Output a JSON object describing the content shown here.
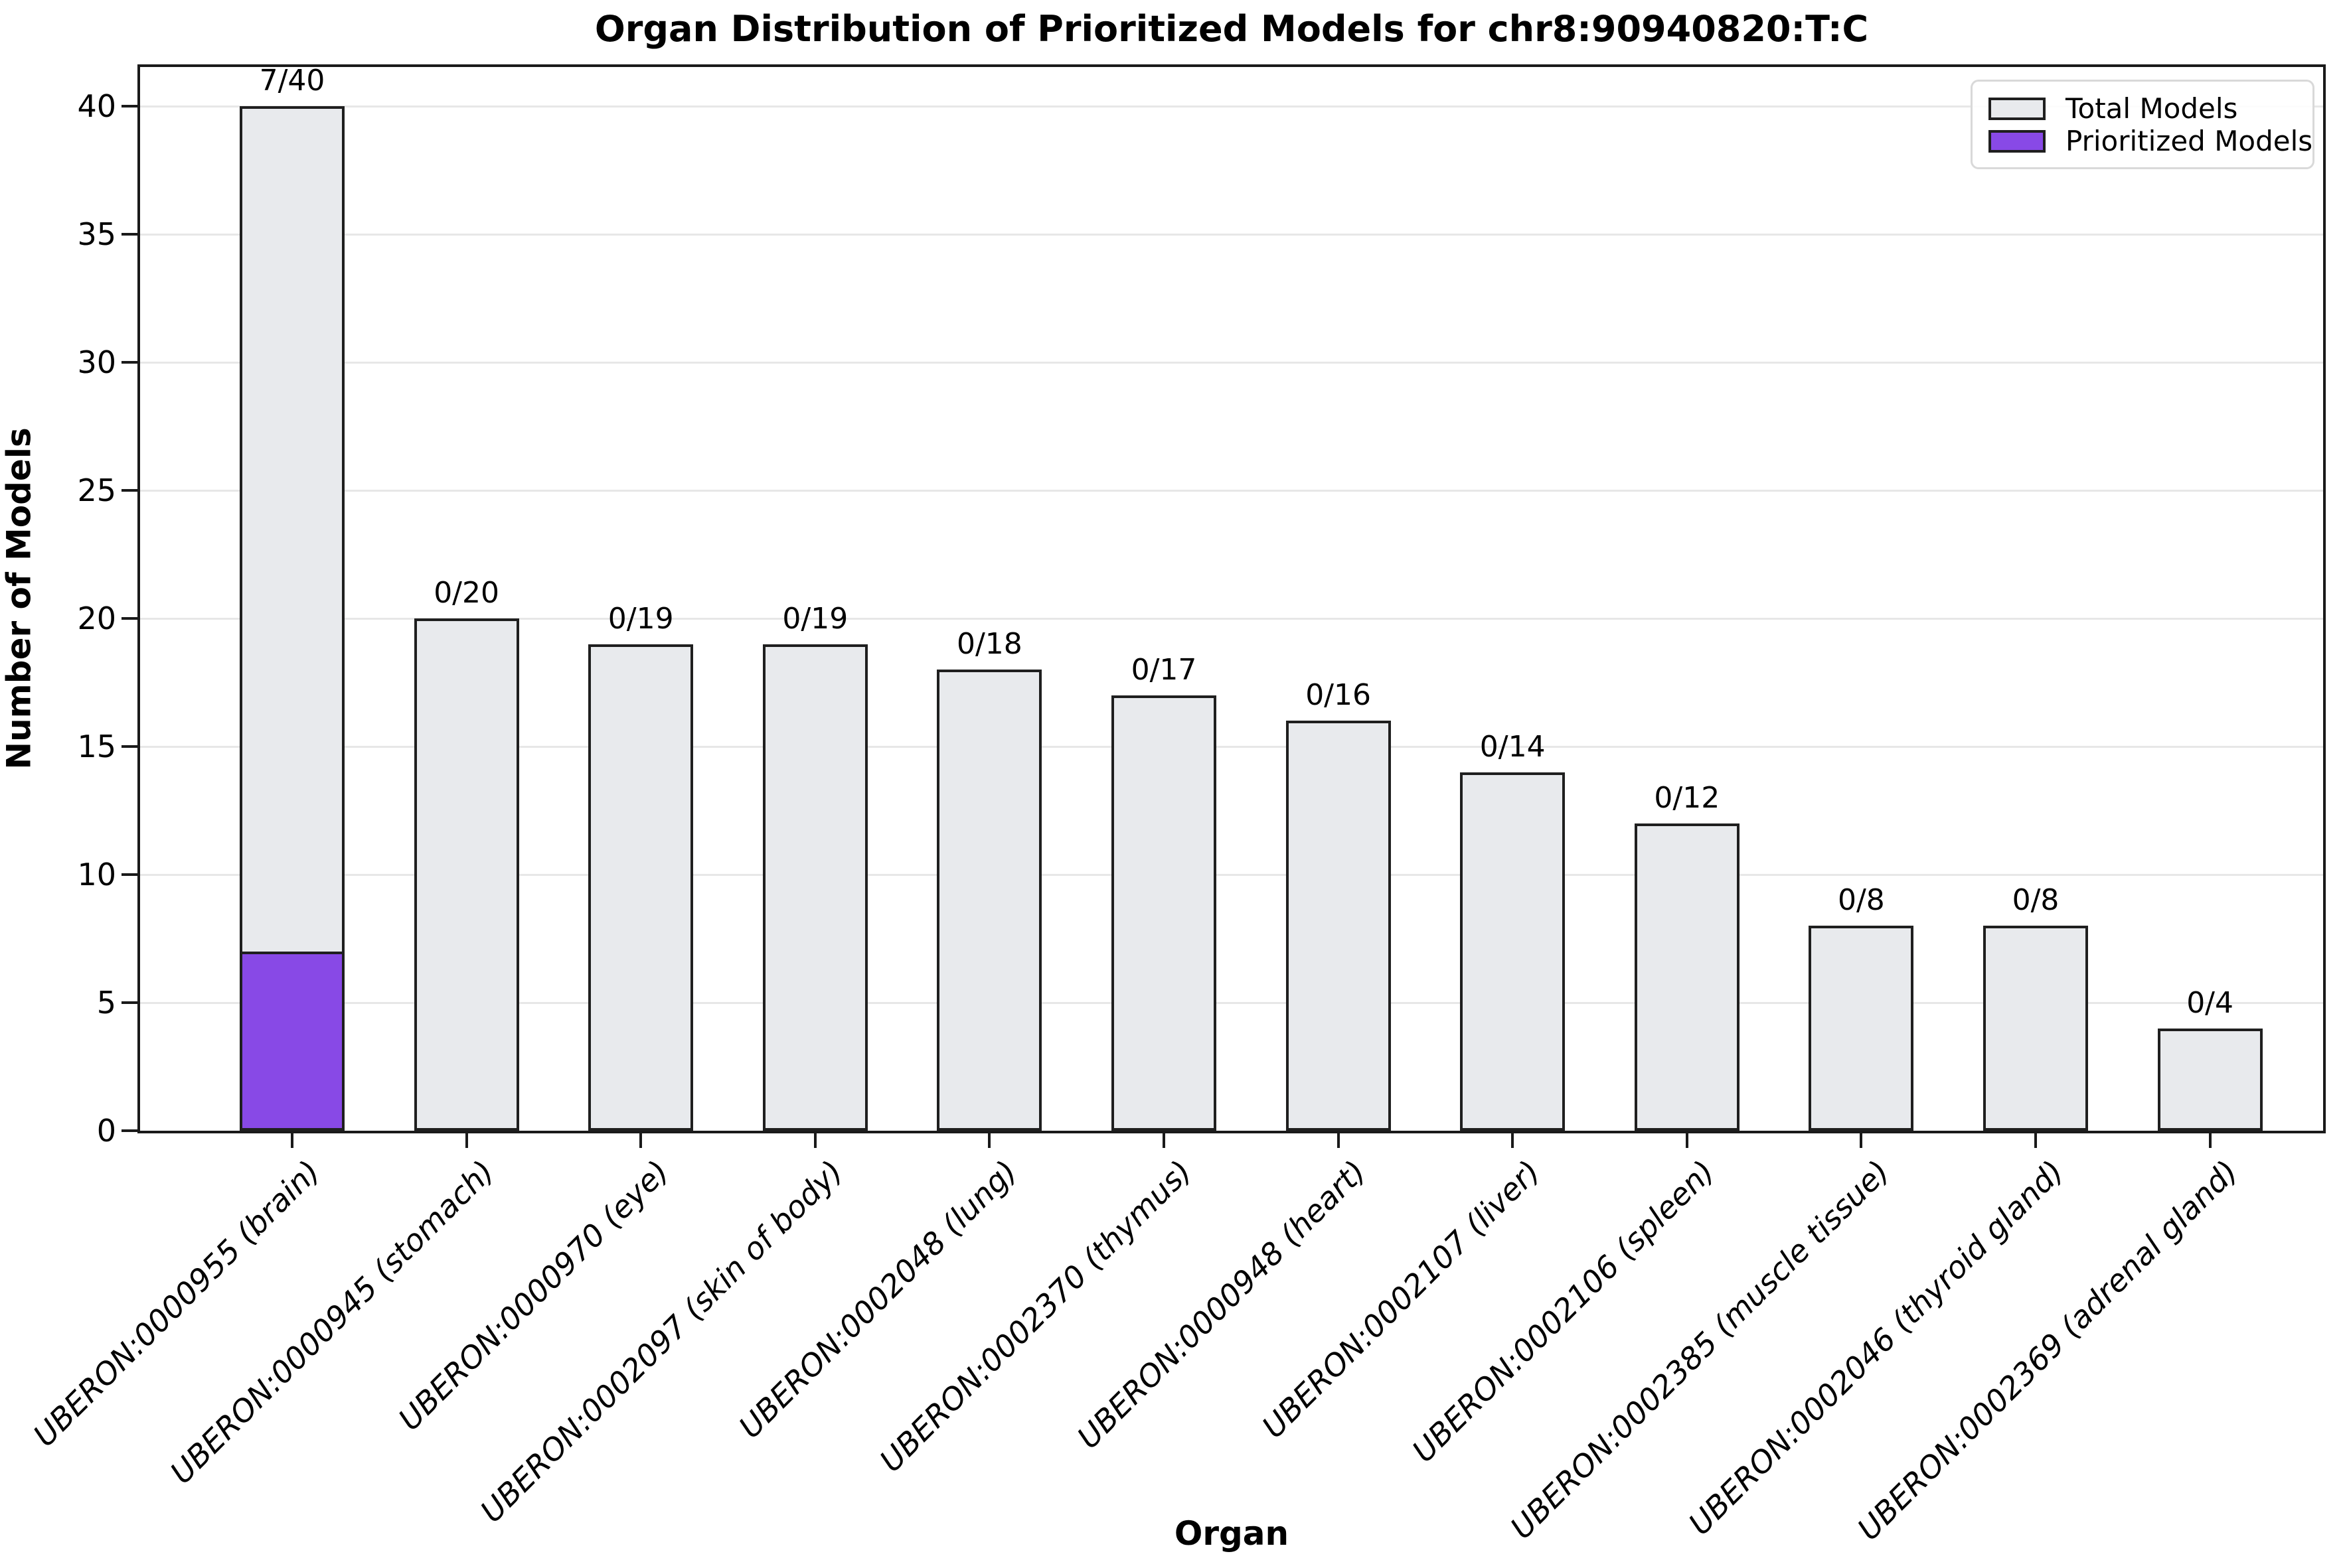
{
  "figure": {
    "title": "Organ Distribution of Prioritized Models for chr8:90940820:T:C",
    "xlabel": "Organ",
    "ylabel": "Number of Models"
  },
  "legend": {
    "position": "upper right",
    "items": [
      {
        "label": "Total Models",
        "color": "#e8eaed",
        "edge_color": "#1f1f1f"
      },
      {
        "label": "Prioritized Models",
        "color": "#8849e6",
        "edge_color": "#1f1f1f"
      }
    ]
  },
  "chart_data": {
    "type": "bar",
    "title": "Organ Distribution of Prioritized Models for chr8:90940820:T:C",
    "xlabel": "Organ",
    "ylabel": "Number of Models",
    "categories": [
      "UBERON:0000955 (brain)",
      "UBERON:0000945 (stomach)",
      "UBERON:0000970 (eye)",
      "UBERON:0002097 (skin of body)",
      "UBERON:0002048 (lung)",
      "UBERON:0002370 (thymus)",
      "UBERON:0000948 (heart)",
      "UBERON:0002107 (liver)",
      "UBERON:0002106 (spleen)",
      "UBERON:0002385 (muscle tissue)",
      "UBERON:0002046 (thyroid gland)",
      "UBERON:0002369 (adrenal gland)"
    ],
    "series": [
      {
        "name": "Total Models",
        "color": "#e8eaed",
        "values": [
          40,
          20,
          19,
          19,
          18,
          17,
          16,
          14,
          12,
          8,
          8,
          4
        ]
      },
      {
        "name": "Prioritized Models",
        "color": "#8849e6",
        "values": [
          7,
          0,
          0,
          0,
          0,
          0,
          0,
          0,
          0,
          0,
          0,
          0
        ]
      }
    ],
    "bar_labels": [
      "7/40",
      "0/20",
      "0/19",
      "0/19",
      "0/18",
      "0/17",
      "0/16",
      "0/14",
      "0/12",
      "0/8",
      "0/8",
      "0/4"
    ],
    "yticks": [
      0,
      5,
      10,
      15,
      20,
      25,
      30,
      35,
      40
    ],
    "ylim": [
      0,
      41.7
    ],
    "grid": "horizontal",
    "grid_color": "#e7e7e7",
    "bar_edge_color": "#1f1f1f",
    "legend_position": "upper right"
  }
}
